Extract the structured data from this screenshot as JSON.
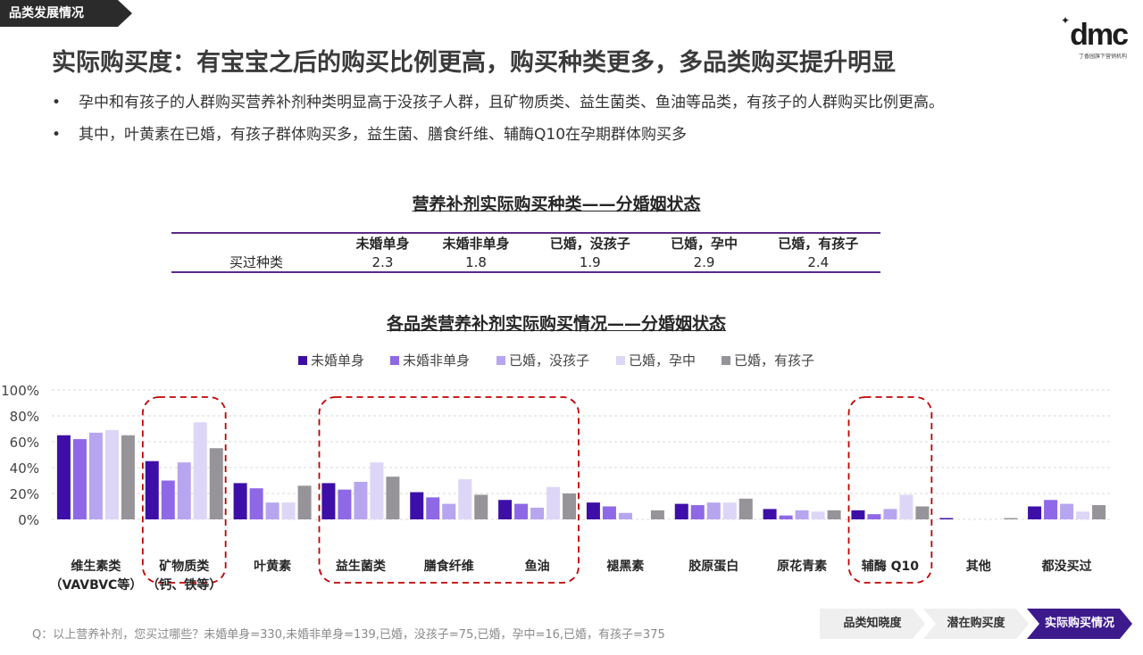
{
  "header": {
    "section_tag": "品类发展情况",
    "logo_mark": "dmc",
    "logo_tagline": "丁香园旗下营销机构",
    "title": "实际购买度：有宝宝之后的购买比例更高，购买种类更多，多品类购买提升明显"
  },
  "bullets": [
    "孕中和有孩子的人群购买营养补剂种类明显高于没孩子人群，且矿物质类、益生菌类、鱼油等品类，有孩子的人群购买比例更高。",
    "其中，叶黄素在已婚，有孩子群体购买多，益生菌、膳食纤维、辅酶Q10在孕期群体购买多"
  ],
  "kinds_table": {
    "title": "营养补剂实际购买种类——分婚姻状态",
    "headers": [
      "",
      "未婚单身",
      "未婚非单身",
      "已婚，没孩子",
      "已婚，孕中",
      "已婚，有孩子"
    ],
    "row_label": "买过种类",
    "values": [
      "2.3",
      "1.8",
      "1.9",
      "2.9",
      "2.4"
    ]
  },
  "chart_data": {
    "type": "bar",
    "title": "各品类营养补剂实际购买情况——分婚姻状态",
    "legend_position": "top-center",
    "grid": true,
    "ylim": [
      0,
      100
    ],
    "y_ticks": [
      "100%",
      "80%",
      "60%",
      "40%",
      "20%",
      "0%"
    ],
    "categories": [
      "维生素类\n（VAVBVC等）",
      "矿物质类\n（钙、铁等）",
      "叶黄素",
      "益生菌类",
      "膳食纤维",
      "鱼油",
      "褪黑素",
      "胶原蛋白",
      "原花青素",
      "辅酶 Q10",
      "其他",
      "都没买过"
    ],
    "series": [
      {
        "name": "未婚单身",
        "color": "#3d0fa8",
        "values": [
          65,
          45,
          28,
          28,
          21,
          15,
          13,
          12,
          8,
          7,
          1,
          10
        ]
      },
      {
        "name": "未婚非单身",
        "color": "#8e68e6",
        "values": [
          62,
          30,
          24,
          23,
          17,
          12,
          10,
          11,
          3,
          4,
          0,
          15
        ]
      },
      {
        "name": "已婚，没孩子",
        "color": "#b7a5f0",
        "values": [
          67,
          44,
          13,
          29,
          12,
          9,
          5,
          13,
          7,
          8,
          0,
          12
        ]
      },
      {
        "name": "已婚，孕中",
        "color": "#ddd6f7",
        "values": [
          69,
          75,
          13,
          44,
          31,
          25,
          0,
          13,
          6,
          19,
          0,
          6
        ]
      },
      {
        "name": "已婚，有孩子",
        "color": "#969399",
        "values": [
          65,
          55,
          26,
          33,
          19,
          20,
          7,
          16,
          7,
          10,
          1,
          11
        ]
      }
    ],
    "highlight_groups": [
      [
        1,
        1
      ],
      [
        3,
        5
      ],
      [
        9,
        9
      ]
    ],
    "highlight_color": "#c00000"
  },
  "footnote": "Q：以上营养补剂，您买过哪些？未婚单身=330,未婚非单身=139,已婚，没孩子=75,已婚，孕中=16,已婚，有孩子=375",
  "nav": {
    "steps": [
      "品类知晓度",
      "潜在购买度",
      "实际购买情况"
    ],
    "active_index": 2
  }
}
